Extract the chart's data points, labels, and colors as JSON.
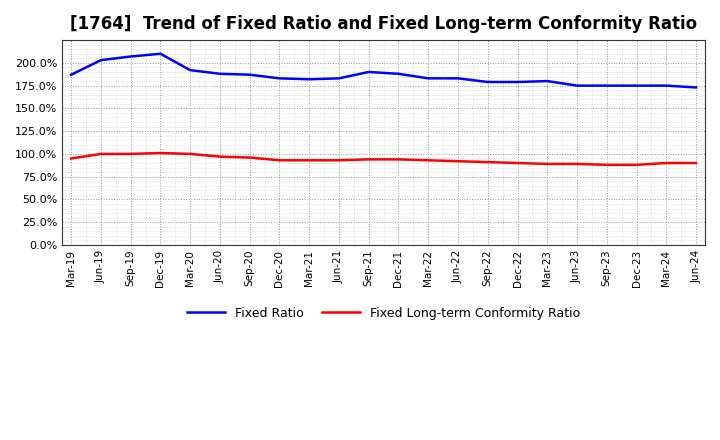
{
  "title": "[1764]  Trend of Fixed Ratio and Fixed Long-term Conformity Ratio",
  "title_fontsize": 12,
  "background_color": "#ffffff",
  "plot_bg_color": "#ffffff",
  "grid_color": "#999999",
  "x_labels": [
    "Mar-19",
    "Jun-19",
    "Sep-19",
    "Dec-19",
    "Mar-20",
    "Jun-20",
    "Sep-20",
    "Dec-20",
    "Mar-21",
    "Jun-21",
    "Sep-21",
    "Dec-21",
    "Mar-22",
    "Jun-22",
    "Sep-22",
    "Dec-22",
    "Mar-23",
    "Jun-23",
    "Sep-23",
    "Dec-23",
    "Mar-24",
    "Jun-24"
  ],
  "fixed_ratio": [
    1.87,
    2.03,
    2.07,
    2.1,
    1.92,
    1.88,
    1.87,
    1.83,
    1.82,
    1.83,
    1.9,
    1.88,
    1.83,
    1.83,
    1.79,
    1.79,
    1.8,
    1.75,
    1.75,
    1.75,
    1.75,
    1.73
  ],
  "fixed_lt_ratio": [
    0.95,
    1.0,
    1.0,
    1.01,
    1.0,
    0.97,
    0.96,
    0.93,
    0.93,
    0.93,
    0.94,
    0.94,
    0.93,
    0.92,
    0.91,
    0.9,
    0.89,
    0.89,
    0.88,
    0.88,
    0.9,
    0.9
  ],
  "fixed_ratio_color": "#0000ff",
  "fixed_lt_ratio_color": "#ff0000",
  "ylim": [
    0.0,
    2.25
  ],
  "yticks": [
    0.0,
    0.25,
    0.5,
    0.75,
    1.0,
    1.25,
    1.5,
    1.75,
    2.0
  ],
  "legend_labels": [
    "Fixed Ratio",
    "Fixed Long-term Conformity Ratio"
  ],
  "line_width": 1.8
}
